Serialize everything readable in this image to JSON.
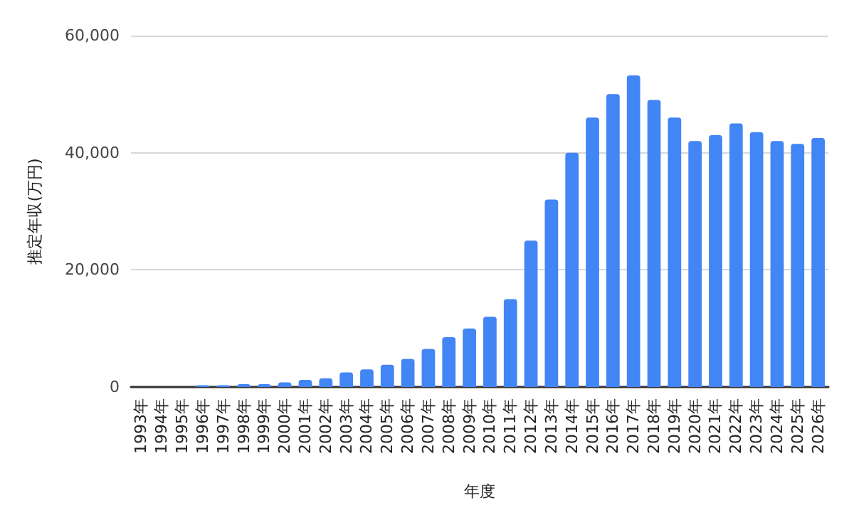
{
  "chart_data": {
    "type": "bar",
    "xlabel": "年度",
    "ylabel": "推定年収(万円)",
    "categories": [
      "1993年",
      "1994年",
      "1995年",
      "1996年",
      "1997年",
      "1998年",
      "1999年",
      "2000年",
      "2001年",
      "2002年",
      "2003年",
      "2004年",
      "2005年",
      "2006年",
      "2007年",
      "2008年",
      "2009年",
      "2010年",
      "2011年",
      "2012年",
      "2013年",
      "2014年",
      "2015年",
      "2016年",
      "2017年",
      "2018年",
      "2019年",
      "2020年",
      "2021年",
      "2022年",
      "2023年",
      "2024年",
      "2025年",
      "2026年"
    ],
    "values": [
      0,
      0,
      0,
      300,
      300,
      500,
      500,
      800,
      1200,
      1500,
      2500,
      3000,
      3800,
      4800,
      6500,
      8500,
      10000,
      12000,
      15000,
      25000,
      32000,
      40000,
      46000,
      50000,
      53200,
      49000,
      46000,
      42000,
      43000,
      45000,
      43500,
      42000,
      41500,
      42500
    ],
    "color": "#4285f4",
    "ylim": [
      0,
      60000
    ],
    "yticks": [
      {
        "value": 0,
        "label": "0"
      },
      {
        "value": 20000,
        "label": "20,000"
      },
      {
        "value": 40000,
        "label": "40,000"
      },
      {
        "value": 60000,
        "label": "60,000"
      }
    ],
    "grid": "y"
  }
}
